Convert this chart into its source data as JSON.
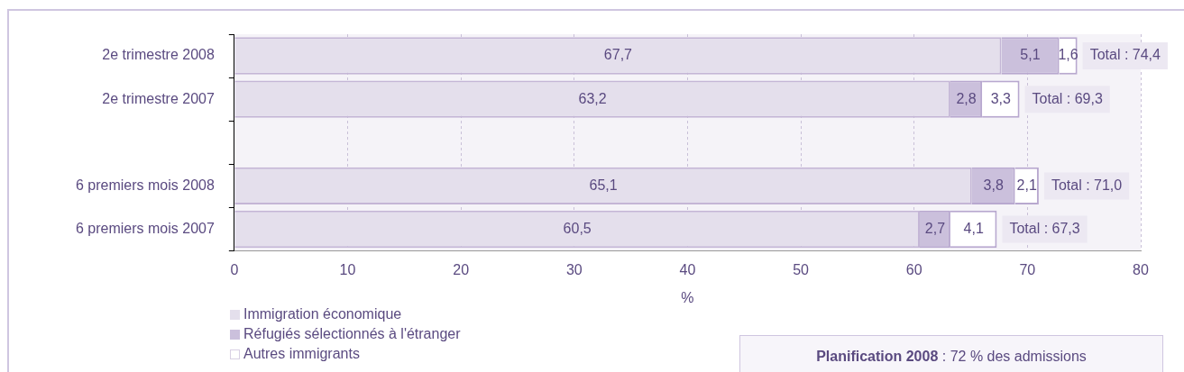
{
  "chart_data": {
    "type": "bar",
    "orientation": "horizontal",
    "stacked": true,
    "categories": [
      "2e trimestre 2008",
      "2e trimestre 2007",
      null,
      "6 premiers mois 2008",
      "6 premiers mois 2007"
    ],
    "series": [
      {
        "name": "Immigration économique",
        "color": "#e4dfec",
        "values": [
          67.7,
          63.2,
          null,
          65.1,
          60.5
        ],
        "value_labels": [
          "67,7",
          "63,2",
          null,
          "65,1",
          "60,5"
        ]
      },
      {
        "name": "Réfugiés sélectionnés à l'étranger",
        "color": "#cbc0dc",
        "values": [
          5.1,
          2.8,
          null,
          3.8,
          2.7
        ],
        "value_labels": [
          "5,1",
          "2,8",
          null,
          "3,8",
          "2,7"
        ]
      },
      {
        "name": "Autres immigrants",
        "color": "#ffffff",
        "values": [
          1.6,
          3.3,
          null,
          2.1,
          4.1
        ],
        "value_labels": [
          "1,6",
          "3,3",
          null,
          "2,1",
          "4,1"
        ]
      }
    ],
    "totals": [
      "Total : 74,4",
      "Total : 69,3",
      null,
      "Total : 71,0",
      "Total : 67,3"
    ],
    "xlim": [
      0,
      80
    ],
    "xticks": [
      0,
      10,
      20,
      30,
      40,
      50,
      60,
      70,
      80
    ],
    "xlabel": "%",
    "grid": "x",
    "legend": "bottom left",
    "annotations": [
      "Planification 2008 : 72 % des admissions"
    ]
  }
}
